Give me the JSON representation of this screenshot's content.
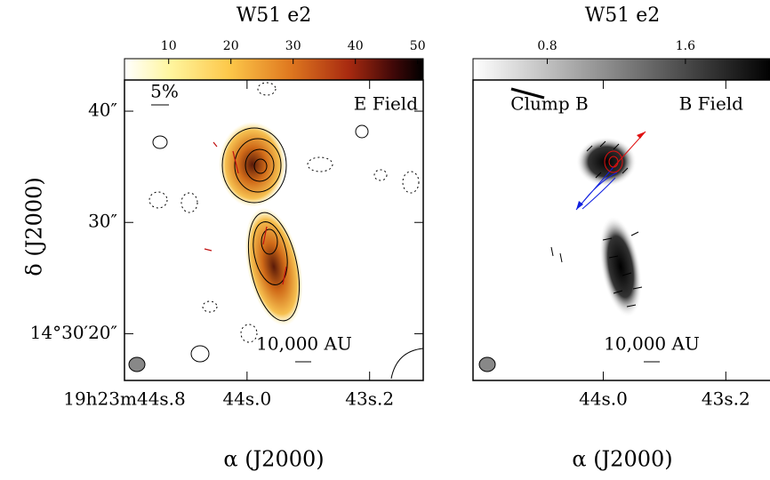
{
  "chart_data": [
    {
      "type": "image",
      "title": "W51 e2",
      "colormap": "heat",
      "colorbar_lim": [
        2.9,
        50.9
      ],
      "colorbar_ticks": [
        10,
        20,
        30,
        40,
        50
      ],
      "xlim": [
        44.8,
        42.85
      ],
      "xticks": [
        {
          "value": 44.8,
          "label": "19h23m44s.8"
        },
        {
          "value": 44.0,
          "label": "44s.0"
        },
        {
          "value": 43.2,
          "label": "43s.2"
        }
      ],
      "ylim": [
        15.8,
        42.8
      ],
      "yticks": [
        {
          "value": 40,
          "label": "40″"
        },
        {
          "value": 30,
          "label": "30″"
        },
        {
          "value": 20,
          "label": "14°30′20″"
        }
      ],
      "xlabel": "α (J2000)",
      "ylabel": "δ (J2000)",
      "annotations": [
        "5%",
        "E Field",
        "10,000 AU"
      ]
    },
    {
      "type": "image",
      "title": "W51 e2",
      "colormap": "gray",
      "colorbar_lim": [
        0.37,
        2.1
      ],
      "colorbar_ticks": [
        0.8,
        1.6
      ],
      "xlim": [
        44.85,
        42.9
      ],
      "xticks": [
        {
          "value": 44.0,
          "label": "44s.0"
        },
        {
          "value": 43.2,
          "label": "43s.2"
        }
      ],
      "xlabel": "α (J2000)",
      "annotations": [
        "Clump B",
        "B Field",
        "10,000 AU"
      ]
    }
  ]
}
